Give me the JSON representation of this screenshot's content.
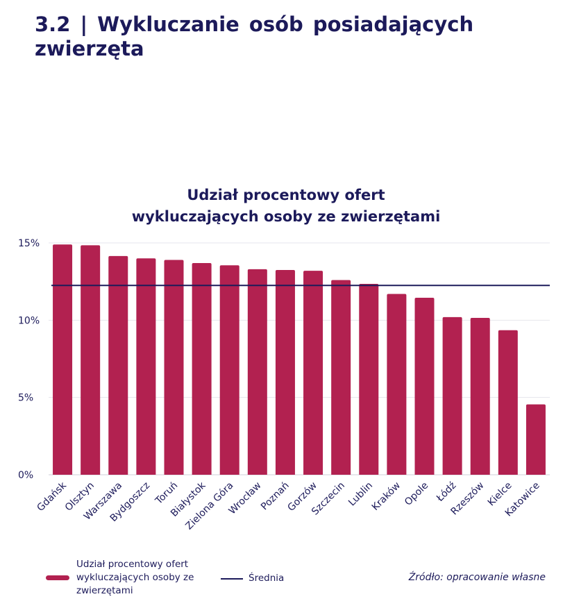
{
  "section": {
    "title_line1": "3.2 | Wykluczanie osób posiadających",
    "title_line2": "zwierzęta"
  },
  "chart_data": {
    "type": "bar",
    "title": "Udział procentowy ofert wykluczających osoby ze zwierzętami",
    "title_lines": [
      "Udział procentowy ofert",
      "wykluczających osoby ze zwierzętami"
    ],
    "categories": [
      "Gdańsk",
      "Olsztyn",
      "Warszawa",
      "Bydgoszcz",
      "Toruń",
      "Białystok",
      "Zielona Góra",
      "Wrocław",
      "Poznań",
      "Gorzów",
      "Szczecin",
      "Lublin",
      "Kraków",
      "Opole",
      "Łódź",
      "Rzeszów",
      "Kielce",
      "Katowice"
    ],
    "series": [
      {
        "name": "Udział procentowy ofert wykluczających osoby ze zwierzętami",
        "values": [
          14.9,
          14.85,
          14.15,
          14.0,
          13.9,
          13.7,
          13.55,
          13.3,
          13.25,
          13.2,
          12.6,
          12.35,
          11.7,
          11.45,
          10.2,
          10.15,
          9.35,
          4.55
        ],
        "color": "#b22150"
      }
    ],
    "reference_line": {
      "name": "Średnia",
      "value": 12.25,
      "color": "#1c1a5a"
    },
    "ylim": [
      0,
      15
    ],
    "yticks": [
      0,
      5,
      10,
      15
    ],
    "ytick_labels": [
      "0%",
      "5%",
      "10%",
      "15%"
    ],
    "xlabel": "",
    "ylabel": "",
    "grid": true,
    "legend_placement": "bottom-left"
  },
  "legend": {
    "series_label": "Udział procentowy ofert wykluczających osoby ze zwierzętami",
    "series_label_lines": [
      "Udział procentowy ofert",
      "wykluczających osoby ze",
      "zwierzętami"
    ],
    "mean_label": "Średnia"
  },
  "source": "Źródło: opracowanie własne",
  "colors": {
    "bar": "#b22150",
    "mean_line": "#1c1a5a",
    "text": "#1c1a5a",
    "grid": "#e6e6ec"
  }
}
